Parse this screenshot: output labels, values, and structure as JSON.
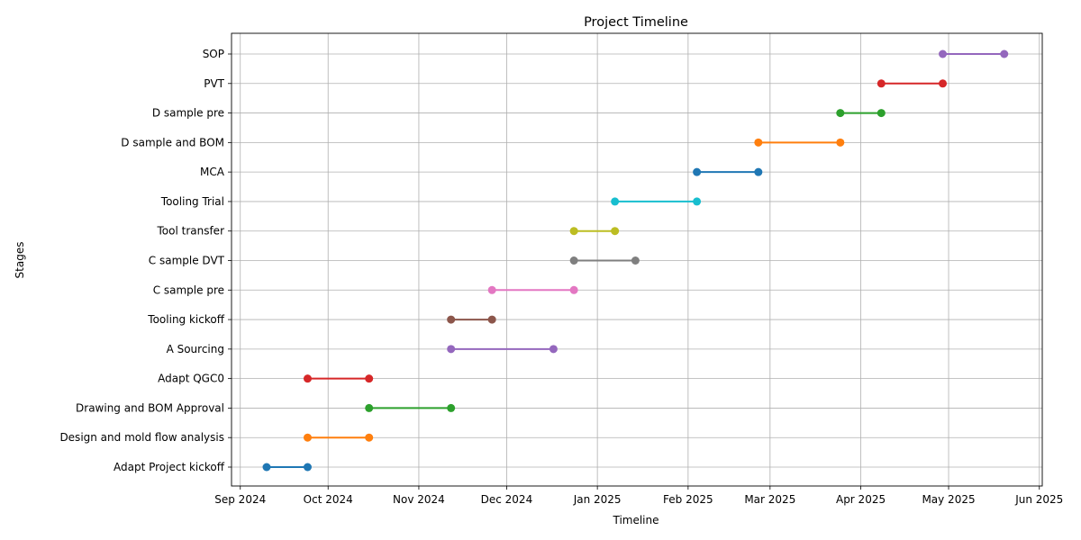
{
  "chart_data": {
    "type": "line",
    "title": "Project Timeline",
    "xlabel": "Timeline",
    "ylabel": "Stages",
    "grid": true,
    "xlim": [
      "2024-08-29",
      "2025-06-02"
    ],
    "x_ticks": [
      {
        "date": "2024-09-01",
        "label": "Sep 2024"
      },
      {
        "date": "2024-10-01",
        "label": "Oct 2024"
      },
      {
        "date": "2024-11-01",
        "label": "Nov 2024"
      },
      {
        "date": "2024-12-01",
        "label": "Dec 2024"
      },
      {
        "date": "2025-01-01",
        "label": "Jan 2025"
      },
      {
        "date": "2025-02-01",
        "label": "Feb 2025"
      },
      {
        "date": "2025-03-01",
        "label": "Mar 2025"
      },
      {
        "date": "2025-04-01",
        "label": "Apr 2025"
      },
      {
        "date": "2025-05-01",
        "label": "May 2025"
      },
      {
        "date": "2025-06-01",
        "label": "Jun 2025"
      }
    ],
    "series": [
      {
        "stage": "Adapt Project kickoff",
        "start": "2024-09-10",
        "end": "2024-09-24",
        "color": "#1f77b4"
      },
      {
        "stage": "Design and mold flow analysis",
        "start": "2024-09-24",
        "end": "2024-10-15",
        "color": "#ff7f0e"
      },
      {
        "stage": "Drawing and BOM Approval",
        "start": "2024-10-15",
        "end": "2024-11-12",
        "color": "#2ca02c"
      },
      {
        "stage": "Adapt QGC0",
        "start": "2024-09-24",
        "end": "2024-10-15",
        "color": "#d62728"
      },
      {
        "stage": "A Sourcing",
        "start": "2024-11-12",
        "end": "2024-12-17",
        "color": "#9467bd"
      },
      {
        "stage": "Tooling kickoff",
        "start": "2024-11-12",
        "end": "2024-11-26",
        "color": "#8c564b"
      },
      {
        "stage": "C sample pre",
        "start": "2024-11-26",
        "end": "2024-12-24",
        "color": "#e377c2"
      },
      {
        "stage": "C sample DVT",
        "start": "2024-12-24",
        "end": "2025-01-14",
        "color": "#7f7f7f"
      },
      {
        "stage": "Tool transfer",
        "start": "2024-12-24",
        "end": "2025-01-07",
        "color": "#bcbd22"
      },
      {
        "stage": "Tooling Trial",
        "start": "2025-01-07",
        "end": "2025-02-04",
        "color": "#17becf"
      },
      {
        "stage": "MCA",
        "start": "2025-02-04",
        "end": "2025-02-25",
        "color": "#1f77b4"
      },
      {
        "stage": "D sample and BOM",
        "start": "2025-02-25",
        "end": "2025-03-25",
        "color": "#ff7f0e"
      },
      {
        "stage": "D sample pre",
        "start": "2025-03-25",
        "end": "2025-04-08",
        "color": "#2ca02c"
      },
      {
        "stage": "PVT",
        "start": "2025-04-08",
        "end": "2025-04-29",
        "color": "#d62728"
      },
      {
        "stage": "SOP",
        "start": "2025-04-29",
        "end": "2025-05-20",
        "color": "#9467bd"
      }
    ]
  }
}
